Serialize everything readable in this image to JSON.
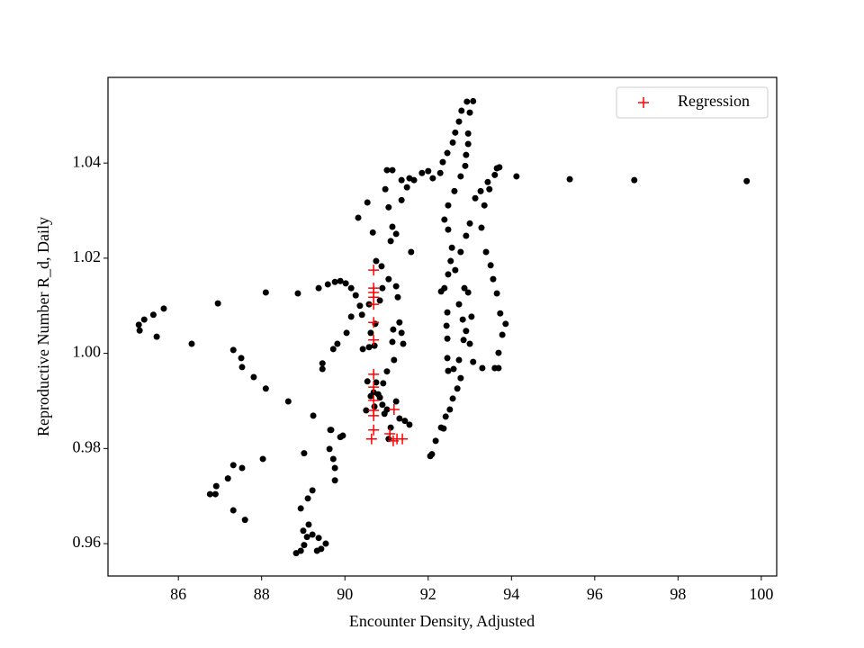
{
  "chart_data": {
    "type": "scatter",
    "xlabel": "Encounter Density, Adjusted",
    "ylabel": "Reproductive Number R_d, Daily",
    "xlim": [
      84.31,
      100.37
    ],
    "ylim": [
      0.9532,
      1.058
    ],
    "xticks": [
      86,
      88,
      90,
      92,
      94,
      96,
      98,
      100
    ],
    "yticks": [
      0.96,
      0.98,
      {
        "value": 1.0,
        "label": "1.00"
      },
      1.02,
      1.04
    ],
    "legend": "upper right",
    "series": [
      {
        "color": "#000000",
        "marker": "o",
        "x": [
          85.05,
          85.07,
          85.18,
          85.4,
          85.48,
          85.65,
          86.32,
          86.95,
          87.32,
          87.51,
          87.53,
          87.81,
          88.1,
          88.64,
          89.24,
          89.63,
          89.95,
          89.67,
          89.02,
          88.1,
          88.87,
          89.37,
          89.59,
          89.76,
          89.89,
          90.02,
          90.15,
          90.26,
          90.36,
          90.41,
          90.15,
          90.04,
          89.82,
          89.72,
          89.46,
          89.46,
          90.43,
          90.58,
          90.71,
          87.32,
          87.53,
          87.19,
          86.91,
          86.89,
          86.76,
          87.32,
          87.6,
          88.03,
          88.83,
          88.94,
          89.02,
          89.09,
          89.13,
          88.94,
          89.22,
          89.11,
          89.33,
          89.43,
          89.54,
          89.37,
          89.22,
          89.0,
          89.72,
          89.76,
          89.76,
          89.65,
          89.89,
          90.32,
          90.54,
          90.67,
          90.75,
          90.88,
          91.05,
          91.27,
          91.31,
          91.36,
          91.4,
          91.16,
          91.14,
          91.18,
          91.01,
          90.92,
          90.8,
          90.62,
          90.54,
          90.69,
          90.9,
          91.01,
          91.23,
          91.31,
          91.44,
          91.55,
          91.1,
          91.05,
          90.95,
          91.01,
          91.14,
          90.97,
          91.05,
          91.14,
          91.23,
          91.1,
          91.36,
          91.49,
          91.55,
          91.59,
          91.85,
          92.0,
          91.36,
          91.66,
          90.84,
          90.73,
          90.62,
          90.58,
          90.9,
          91.23,
          90.84,
          90.51,
          90.71,
          90.75,
          92.11,
          92.29,
          92.35,
          92.46,
          92.59,
          92.65,
          92.74,
          92.8,
          92.93,
          93.08,
          93.0,
          92.96,
          92.96,
          92.91,
          92.89,
          92.78,
          92.63,
          92.48,
          92.39,
          92.48,
          92.57,
          92.54,
          92.48,
          92.39,
          92.31,
          92.46,
          92.44,
          92.46,
          92.46,
          92.48,
          92.61,
          92.74,
          92.85,
          92.91,
          92.83,
          92.74,
          92.87,
          92.96,
          93.04,
          93.0,
          93.08,
          93.3,
          93.6,
          93.69,
          93.69,
          93.78,
          93.86,
          93.73,
          93.65,
          93.56,
          93.5,
          93.39,
          93.28,
          93.35,
          93.47,
          93.6,
          93.65,
          93.71,
          93.43,
          93.26,
          93.13,
          93.0,
          92.91,
          92.78,
          92.65,
          92.78,
          92.7,
          92.59,
          92.52,
          92.42,
          92.31,
          92.18,
          92.09,
          92.05,
          92.37,
          94.12,
          95.4,
          96.95,
          99.65
        ],
        "values": [
          1.006,
          1.0048,
          1.0071,
          1.0081,
          1.0035,
          1.0094,
          1.002,
          1.0105,
          1.0007,
          0.999,
          0.9971,
          0.995,
          0.9926,
          0.9899,
          0.9869,
          0.9799,
          0.9827,
          0.9839,
          0.979,
          1.0128,
          1.0126,
          1.0137,
          1.0145,
          1.015,
          1.0152,
          1.0147,
          1.0137,
          1.0122,
          1.01,
          1.0081,
          1.0077,
          1.0043,
          1.002,
          1.0009,
          0.9979,
          0.9967,
          1.0009,
          1.0013,
          1.0016,
          0.9765,
          0.9759,
          0.9737,
          0.9721,
          0.9704,
          0.9704,
          0.967,
          0.965,
          0.9778,
          0.958,
          0.9585,
          0.9597,
          0.9614,
          0.964,
          0.9674,
          0.9712,
          0.9695,
          0.9585,
          0.9589,
          0.96,
          0.9612,
          0.9619,
          0.9627,
          0.9778,
          0.9759,
          0.9733,
          0.9839,
          0.9824,
          1.0285,
          1.0317,
          1.0254,
          1.0194,
          1.0183,
          1.0156,
          1.0118,
          1.0065,
          1.0043,
          1.002,
          1.005,
          1.0024,
          0.9986,
          0.9962,
          0.9937,
          0.9914,
          0.991,
          0.9941,
          0.9918,
          0.9892,
          0.9882,
          0.9899,
          0.9863,
          0.9858,
          0.985,
          0.9844,
          0.982,
          0.9873,
          1.0385,
          1.0385,
          1.0345,
          1.0307,
          1.0266,
          1.0251,
          1.0236,
          1.0322,
          1.0349,
          1.0368,
          1.0213,
          1.0379,
          1.0383,
          1.0364,
          1.0364,
          1.0111,
          1.0062,
          1.0043,
          1.0103,
          1.0137,
          1.0141,
          0.9907,
          0.988,
          0.9888,
          0.9939,
          1.0368,
          1.0379,
          1.0402,
          1.0421,
          1.0443,
          1.0464,
          1.0487,
          1.051,
          1.0529,
          1.053,
          1.0506,
          1.0462,
          1.044,
          1.0417,
          1.0394,
          1.0372,
          1.0341,
          1.0311,
          1.0281,
          1.026,
          1.0222,
          1.0194,
          1.0166,
          1.0137,
          1.013,
          1.0086,
          1.0058,
          1.0031,
          0.999,
          0.9963,
          0.9967,
          0.9986,
          1.0028,
          1.0047,
          1.0071,
          1.0103,
          1.0137,
          1.0128,
          1.0077,
          1.002,
          0.9982,
          0.9969,
          0.9969,
          0.9969,
          1.0001,
          1.0039,
          1.0062,
          1.0084,
          1.0126,
          1.0156,
          1.0185,
          1.0213,
          1.0264,
          1.0311,
          1.0345,
          1.0375,
          1.0389,
          1.0391,
          1.036,
          1.0341,
          1.0326,
          1.0273,
          1.0247,
          1.0213,
          1.0175,
          0.9948,
          0.9926,
          0.9905,
          0.9882,
          0.9867,
          0.9844,
          0.9816,
          0.9788,
          0.9784,
          0.9842,
          1.0372,
          1.0366,
          1.0364,
          1.0362
        ]
      },
      {
        "name": "Regression",
        "color": "#ff0000",
        "marker": "+",
        "x": [
          90.69,
          90.69,
          90.69,
          90.69,
          90.69,
          90.69,
          90.69,
          90.69,
          90.69,
          90.69,
          90.69,
          90.69,
          90.69,
          90.64,
          91.08,
          91.16,
          91.25,
          91.38,
          91.18
        ],
        "values": [
          1.0175,
          1.0137,
          1.0128,
          1.0118,
          1.0103,
          1.0065,
          1.0028,
          0.9956,
          0.9929,
          0.9901,
          0.988,
          0.9869,
          0.9839,
          0.982,
          0.9831,
          0.9816,
          0.982,
          0.982,
          0.9882
        ]
      }
    ]
  }
}
